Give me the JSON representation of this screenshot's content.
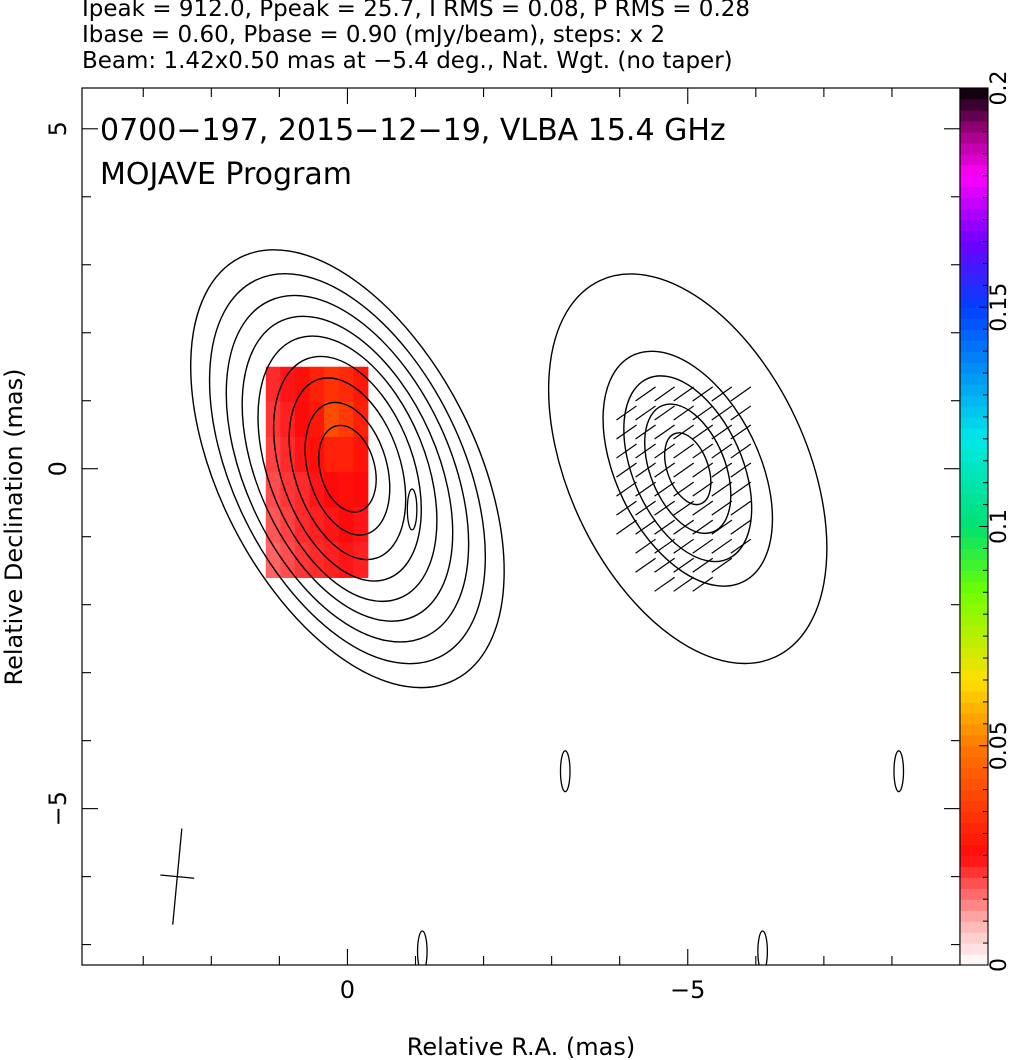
{
  "header": {
    "line1": "Ipeak = 912.0, Ppeak = 25.7, I RMS = 0.08, P RMS = 0.28",
    "line2": "Ibase = 0.60, Pbase = 0.90 (mJy/beam), steps: x 2",
    "line3": "Beam: 1.42x0.50 mas at −5.4 deg., Nat. Wgt. (no taper)"
  },
  "chart_data": {
    "type": "heatmap",
    "title": "0700−197, 2015−12−19, VLBA 15.4 GHz",
    "subtitle": "MOJAVE Program",
    "xlabel": "Relative R.A. (mas)",
    "ylabel": "Relative Declination (mas)",
    "xlim": [
      3.9,
      -9.0
    ],
    "ylim": [
      -7.3,
      5.6
    ],
    "x_ticks": [
      {
        "value": 0,
        "label": "0"
      },
      {
        "value": -5,
        "label": "−5"
      }
    ],
    "y_ticks": [
      {
        "value": 5,
        "label": "5"
      },
      {
        "value": 0,
        "label": "0"
      },
      {
        "value": -5,
        "label": "−5"
      }
    ],
    "colorbar": {
      "range": [
        0,
        0.2
      ],
      "ticks": [
        {
          "value": 0,
          "label": "0"
        },
        {
          "value": 0.05,
          "label": "0.05"
        },
        {
          "value": 0.1,
          "label": "0.1"
        },
        {
          "value": 0.15,
          "label": "0.15"
        },
        {
          "value": 0.2,
          "label": "0.2"
        }
      ],
      "stops": [
        {
          "v": 0.0,
          "color": "#ffffff"
        },
        {
          "v": 0.01,
          "color": "#ffb0b0"
        },
        {
          "v": 0.025,
          "color": "#ff0a0a"
        },
        {
          "v": 0.05,
          "color": "#ff7800"
        },
        {
          "v": 0.065,
          "color": "#ffe000"
        },
        {
          "v": 0.085,
          "color": "#70ff00"
        },
        {
          "v": 0.1,
          "color": "#00e070"
        },
        {
          "v": 0.12,
          "color": "#00e8e8"
        },
        {
          "v": 0.15,
          "color": "#0040ff"
        },
        {
          "v": 0.165,
          "color": "#7000ff"
        },
        {
          "v": 0.18,
          "color": "#ff00ff"
        },
        {
          "v": 0.19,
          "color": "#a00080"
        },
        {
          "v": 0.2,
          "color": "#000000"
        }
      ]
    },
    "panels": [
      {
        "name": "total-intensity-fractional-polarization",
        "center": [
          0.0,
          0.0
        ],
        "contours": [
          {
            "rx": 0.4,
            "ry": 0.65,
            "rot": -15
          },
          {
            "rx": 0.58,
            "ry": 1.0,
            "rot": -16
          },
          {
            "rx": 0.78,
            "ry": 1.38,
            "rot": -18
          },
          {
            "rx": 0.97,
            "ry": 1.72,
            "rot": -20
          },
          {
            "rx": 1.15,
            "ry": 2.05,
            "rot": -22
          },
          {
            "rx": 1.32,
            "ry": 2.38,
            "rot": -24
          },
          {
            "rx": 1.5,
            "ry": 2.72,
            "rot": -25
          },
          {
            "rx": 1.68,
            "ry": 3.08,
            "rot": -26
          },
          {
            "rx": 1.88,
            "ry": 3.48,
            "rot": -27
          }
        ],
        "fpol_region": {
          "x0": -0.3,
          "x1": 1.2,
          "y0": -1.6,
          "y1": 1.5
        },
        "fpol_values": [
          [
            0.022,
            0.024,
            0.026,
            0.03,
            0.034,
            0.032,
            0.028
          ],
          [
            0.021,
            0.023,
            0.025,
            0.028,
            0.04,
            0.036,
            0.03
          ],
          [
            0.02,
            0.022,
            0.024,
            0.026,
            0.03,
            0.03,
            0.027
          ],
          [
            0.019,
            0.021,
            0.022,
            0.024,
            0.025,
            0.026,
            0.025
          ],
          [
            0.018,
            0.02,
            0.022,
            0.023,
            0.024,
            0.025,
            0.024
          ],
          [
            0.017,
            0.019,
            0.021,
            0.022,
            0.023,
            0.024,
            0.023
          ]
        ]
      },
      {
        "name": "polarized-intensity-evpa",
        "center": [
          -5.0,
          0.0
        ],
        "contours": [
          {
            "rx": 0.3,
            "ry": 0.55,
            "rot": -20
          },
          {
            "rx": 0.55,
            "ry": 1.0,
            "rot": -22
          },
          {
            "rx": 0.8,
            "ry": 1.45,
            "rot": -24
          },
          {
            "rx": 1.05,
            "ry": 1.85,
            "rot": -26
          },
          {
            "rx": 1.75,
            "ry": 3.05,
            "rot": -25
          }
        ],
        "evpa_region": {
          "x0": -6.0,
          "x1": -4.1,
          "y0": -1.7,
          "y1": 1.3
        },
        "evpa_deg": 35
      }
    ],
    "noise_contours": [
      {
        "x": -0.95,
        "y": -0.6
      },
      {
        "x": -3.2,
        "y": -4.45
      },
      {
        "x": -8.1,
        "y": -4.45
      },
      {
        "x": -1.1,
        "y": -7.1
      },
      {
        "x": -6.1,
        "y": -7.1
      }
    ],
    "beam": {
      "major_mas": 1.42,
      "minor_mas": 0.5,
      "pa_deg": -5.4,
      "center": [
        2.5,
        -6.0
      ]
    }
  }
}
